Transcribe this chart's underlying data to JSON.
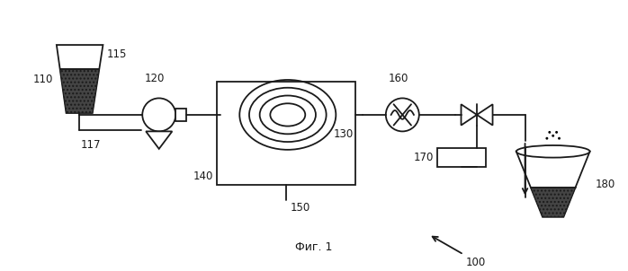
{
  "title": "Фиг. 1",
  "label_100": "100",
  "label_110": "110",
  "label_115": "115",
  "label_117": "117",
  "label_120": "120",
  "label_130": "130",
  "label_140": "140",
  "label_150": "150",
  "label_160": "160",
  "label_170": "170",
  "label_180": "180",
  "bg_color": "#ffffff",
  "line_color": "#1a1a1a"
}
